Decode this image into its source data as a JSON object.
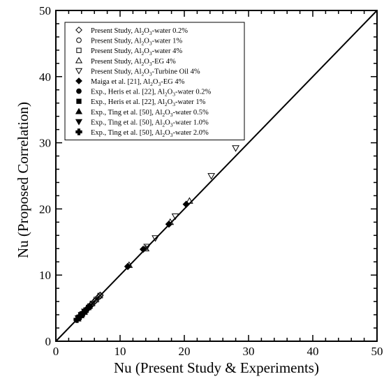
{
  "chart_data": {
    "type": "scatter",
    "title": "",
    "xlabel": "Nu (Present Study & Experiments)",
    "ylabel": "Nu (Proposed Correlation)",
    "xlim": [
      0,
      50
    ],
    "ylim": [
      0,
      50
    ],
    "xticks": [
      "0",
      "10",
      "20",
      "30",
      "40",
      "50"
    ],
    "yticks": [
      "0",
      "10",
      "20",
      "30",
      "40",
      "50"
    ],
    "grid": false,
    "legend_position": "top-left",
    "reference_line": {
      "x": [
        0,
        50
      ],
      "y": [
        0,
        50
      ]
    },
    "series": [
      {
        "name_parts": [
          [
            "Present Study, Al",
            ""
          ],
          [
            "2",
            "sub"
          ],
          [
            "O",
            ""
          ],
          [
            "3",
            "sub"
          ],
          [
            "-water 0.2%",
            ""
          ]
        ],
        "marker": "diamond-open",
        "points": [
          [
            3.6,
            3.65
          ],
          [
            4.2,
            4.25
          ],
          [
            4.8,
            4.85
          ],
          [
            5.4,
            5.45
          ],
          [
            6.0,
            6.0
          ],
          [
            6.6,
            6.65
          ],
          [
            6.9,
            6.95
          ]
        ]
      },
      {
        "name_parts": [
          [
            "Present Study, Al",
            ""
          ],
          [
            "2",
            "sub"
          ],
          [
            "O",
            ""
          ],
          [
            "3",
            "sub"
          ],
          [
            "-water 1%",
            ""
          ]
        ],
        "marker": "circle-open",
        "points": [
          [
            3.7,
            3.7
          ],
          [
            4.3,
            4.3
          ],
          [
            4.9,
            4.9
          ],
          [
            5.5,
            5.5
          ],
          [
            6.1,
            6.1
          ],
          [
            6.7,
            6.7
          ]
        ]
      },
      {
        "name_parts": [
          [
            "Present Study, Al",
            ""
          ],
          [
            "2",
            "sub"
          ],
          [
            "O",
            ""
          ],
          [
            "3",
            "sub"
          ],
          [
            "-water 4%",
            ""
          ]
        ],
        "marker": "square-open",
        "points": [
          [
            3.9,
            3.95
          ],
          [
            4.5,
            4.5
          ],
          [
            5.1,
            5.1
          ],
          [
            5.7,
            5.7
          ],
          [
            6.3,
            6.3
          ],
          [
            6.9,
            6.9
          ]
        ]
      },
      {
        "name_parts": [
          [
            "Present Study, Al",
            ""
          ],
          [
            "2",
            "sub"
          ],
          [
            "O",
            ""
          ],
          [
            "3",
            "sub"
          ],
          [
            "-EG 4%",
            ""
          ]
        ],
        "marker": "triangle-up-open",
        "points": [
          [
            11.4,
            11.5
          ],
          [
            14.0,
            14.0
          ],
          [
            17.8,
            18.0
          ],
          [
            20.8,
            21.2
          ]
        ]
      },
      {
        "name_parts": [
          [
            "Present Study, Al",
            ""
          ],
          [
            "2",
            "sub"
          ],
          [
            "O",
            ""
          ],
          [
            "3",
            "sub"
          ],
          [
            "-Turbine Oil 4%",
            ""
          ]
        ],
        "marker": "triangle-down-open",
        "points": [
          [
            14.2,
            14.3
          ],
          [
            15.5,
            15.6
          ],
          [
            18.6,
            18.9
          ],
          [
            24.2,
            25.0
          ],
          [
            28.0,
            29.2
          ]
        ]
      },
      {
        "name_parts": [
          [
            "Maiga et al. [21], Al",
            ""
          ],
          [
            "2",
            "sub"
          ],
          [
            "O",
            ""
          ],
          [
            "3",
            "sub"
          ],
          [
            "-EG 4%",
            ""
          ]
        ],
        "marker": "diamond-filled",
        "points": [
          [
            11.2,
            11.3
          ],
          [
            13.6,
            13.9
          ],
          [
            17.6,
            17.7
          ],
          [
            20.3,
            20.7
          ]
        ]
      },
      {
        "name_parts": [
          [
            "Exp., Heris et al. [22], Al",
            ""
          ],
          [
            "2",
            "sub"
          ],
          [
            "O",
            ""
          ],
          [
            "3",
            "sub"
          ],
          [
            "-water 0.2%",
            ""
          ]
        ],
        "marker": "circle-filled",
        "points": [
          [
            3.5,
            3.5
          ],
          [
            4.0,
            4.0
          ],
          [
            4.6,
            4.6
          ],
          [
            5.2,
            5.2
          ]
        ]
      },
      {
        "name_parts": [
          [
            "Exp., Heris et al. [22], Al",
            ""
          ],
          [
            "2",
            "sub"
          ],
          [
            "O",
            ""
          ],
          [
            "3",
            "sub"
          ],
          [
            "-water 1%",
            ""
          ]
        ],
        "marker": "square-filled",
        "points": [
          [
            3.6,
            3.6
          ],
          [
            4.1,
            4.1
          ],
          [
            4.7,
            4.7
          ],
          [
            5.3,
            5.3
          ]
        ]
      },
      {
        "name_parts": [
          [
            "Exp., Ting et al. [50], Al",
            ""
          ],
          [
            "2",
            "sub"
          ],
          [
            "O",
            ""
          ],
          [
            "3",
            "sub"
          ],
          [
            "-water 0.5%",
            ""
          ]
        ],
        "marker": "triangle-up-filled",
        "points": [
          [
            3.4,
            3.4
          ],
          [
            3.9,
            3.9
          ],
          [
            4.4,
            4.4
          ]
        ]
      },
      {
        "name_parts": [
          [
            "Exp., Ting et al. [50], Al",
            ""
          ],
          [
            "2",
            "sub"
          ],
          [
            "O",
            ""
          ],
          [
            "3",
            "sub"
          ],
          [
            "-water 1.0%",
            ""
          ]
        ],
        "marker": "triangle-down-filled",
        "points": [
          [
            3.5,
            3.5
          ],
          [
            4.0,
            4.0
          ],
          [
            4.5,
            4.5
          ]
        ]
      },
      {
        "name_parts": [
          [
            "Exp., Ting et al. [50], Al",
            ""
          ],
          [
            "2",
            "sub"
          ],
          [
            "O",
            ""
          ],
          [
            "3",
            "sub"
          ],
          [
            "-water 2.0%",
            ""
          ]
        ],
        "marker": "plus-filled",
        "points": [
          [
            3.3,
            3.3
          ],
          [
            3.8,
            3.8
          ],
          [
            4.3,
            4.3
          ]
        ]
      }
    ]
  }
}
